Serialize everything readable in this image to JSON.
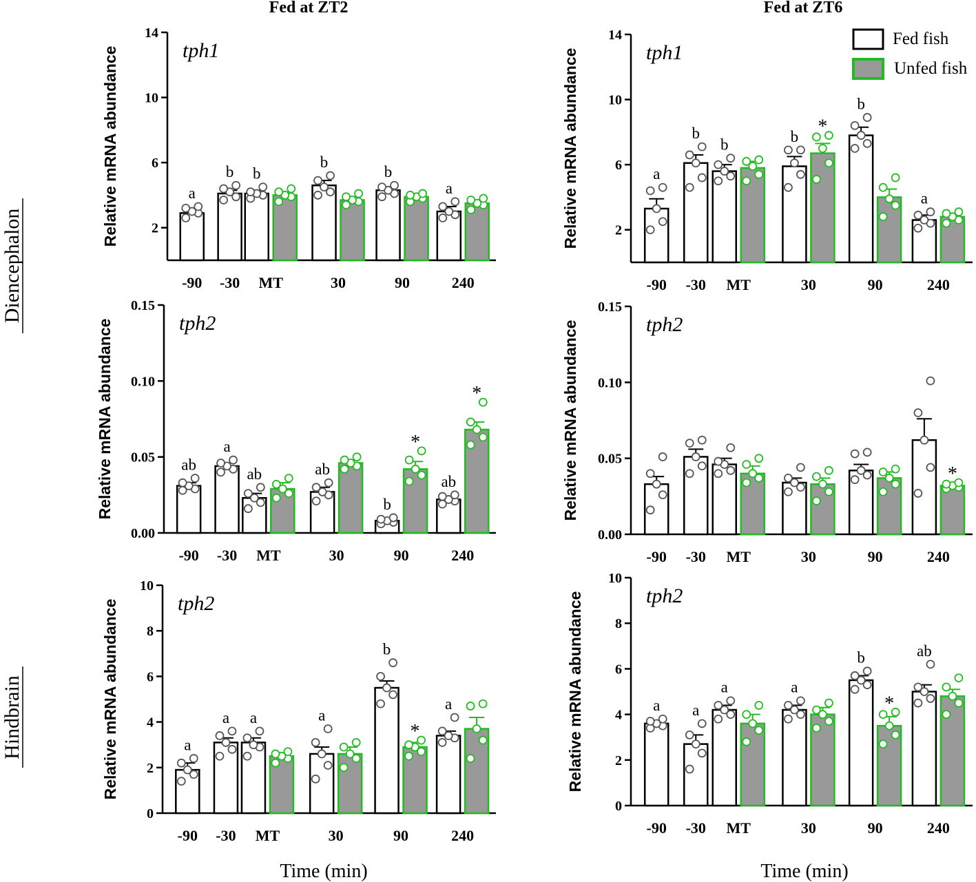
{
  "figure": {
    "col_titles": [
      "Fed at ZT2",
      "Fed at ZT6"
    ],
    "row_labels": [
      "Diencephalon",
      "Hindbrain"
    ],
    "xaxis_title": "Time (min)",
    "ylabel": "Relative mRNA abundance",
    "legend": {
      "fed": "Fed fish",
      "unfed": "Unfed fish"
    },
    "colors": {
      "fed_fill": "#ffffff",
      "fed_stroke": "#000000",
      "unfed_fill": "#999999",
      "unfed_stroke": "#22bb22",
      "fed_dot": "#555555",
      "unfed_dot": "#22bb22"
    }
  },
  "chart_data": [
    {
      "type": "bar",
      "panel": "A",
      "title": "tph1",
      "column": "Fed at ZT2",
      "region": "Diencephalon",
      "ylim": [
        0,
        14
      ],
      "yticks": [
        2,
        6,
        10,
        14
      ],
      "ytick_labels": [
        "2",
        "6",
        "10",
        "14"
      ],
      "categories": [
        "-90",
        "-30",
        "MT",
        "30",
        "90",
        "240"
      ],
      "series": [
        {
          "name": "Fed fish",
          "values": [
            2.9,
            4.1,
            4.1,
            4.6,
            4.3,
            3.0
          ],
          "sem": [
            0.2,
            0.2,
            0.2,
            0.3,
            0.2,
            0.3
          ],
          "labels": [
            "a",
            "b",
            "b",
            "b",
            "b",
            "a"
          ],
          "points": [
            [
              2.6,
              2.9,
              3.0,
              3.2,
              3.3
            ],
            [
              3.7,
              3.9,
              4.2,
              4.4,
              4.6
            ],
            [
              3.8,
              4.0,
              4.1,
              4.2,
              4.5
            ],
            [
              4.0,
              4.2,
              4.5,
              4.9,
              5.2
            ],
            [
              3.9,
              4.1,
              4.3,
              4.5,
              4.6
            ],
            [
              2.6,
              2.8,
              3.0,
              3.3,
              3.6
            ]
          ]
        },
        {
          "name": "Unfed fish",
          "values": [
            null,
            null,
            4.0,
            3.7,
            3.9,
            3.5
          ],
          "sem": [
            null,
            null,
            0.2,
            0.2,
            0.1,
            0.2
          ],
          "labels": [
            "",
            "",
            "",
            "",
            "",
            ""
          ],
          "points": [
            null,
            null,
            [
              3.6,
              3.9,
              4.0,
              4.2,
              4.4
            ],
            [
              3.4,
              3.6,
              3.7,
              3.9,
              4.1
            ],
            [
              3.6,
              3.8,
              3.9,
              4.0,
              4.1
            ],
            [
              3.1,
              3.4,
              3.5,
              3.7,
              3.8
            ]
          ]
        }
      ]
    },
    {
      "type": "bar",
      "panel": "B",
      "title": "tph1",
      "column": "Fed at ZT6",
      "region": "Diencephalon",
      "ylim": [
        0,
        14
      ],
      "yticks": [
        2,
        6,
        10,
        14
      ],
      "ytick_labels": [
        "2",
        "6",
        "10",
        "14"
      ],
      "categories": [
        "-90",
        "-30",
        "MT",
        "30",
        "90",
        "240"
      ],
      "series": [
        {
          "name": "Fed fish",
          "values": [
            3.3,
            6.1,
            5.6,
            5.9,
            7.8,
            2.6
          ],
          "sem": [
            0.6,
            0.5,
            0.4,
            0.6,
            0.5,
            0.3
          ],
          "labels": [
            "a",
            "b",
            "b",
            "b",
            "b",
            "a"
          ],
          "points": [
            [
              2.0,
              2.5,
              3.3,
              4.4,
              4.6
            ],
            [
              4.6,
              5.2,
              6.1,
              6.6,
              7.1
            ],
            [
              5.0,
              5.3,
              5.6,
              6.0,
              6.4
            ],
            [
              4.6,
              5.4,
              6.1,
              6.9,
              6.9
            ],
            [
              7.0,
              7.3,
              7.8,
              8.4,
              8.9
            ],
            [
              2.1,
              2.4,
              2.6,
              2.9,
              3.1
            ]
          ]
        },
        {
          "name": "Unfed fish",
          "values": [
            null,
            null,
            5.8,
            6.7,
            4.0,
            2.8
          ],
          "sem": [
            null,
            null,
            0.4,
            0.6,
            0.5,
            0.2
          ],
          "labels": [
            "",
            "",
            "",
            "*",
            "",
            ""
          ],
          "points": [
            null,
            null,
            [
              5.0,
              5.4,
              5.9,
              6.2,
              6.3
            ],
            [
              5.1,
              6.1,
              7.0,
              7.7,
              7.8
            ],
            [
              2.8,
              3.5,
              3.9,
              4.6,
              5.2
            ],
            [
              2.4,
              2.6,
              2.8,
              3.0,
              3.1
            ]
          ]
        }
      ]
    },
    {
      "type": "bar",
      "panel": "C",
      "title": "tph2",
      "column": "Fed at ZT2",
      "region": "Diencephalon",
      "ylim": [
        0,
        0.15
      ],
      "yticks": [
        0,
        0.05,
        0.1,
        0.15
      ],
      "ytick_labels": [
        "0.00",
        "0.05",
        "0.10",
        "0.15"
      ],
      "categories": [
        "-90",
        "-30",
        "MT",
        "30",
        "90",
        "240"
      ],
      "series": [
        {
          "name": "Fed fish",
          "values": [
            0.031,
            0.044,
            0.023,
            0.027,
            0.008,
            0.022
          ],
          "sem": [
            0.002,
            0.002,
            0.003,
            0.003,
            0.001,
            0.002
          ],
          "labels": [
            "ab",
            "a",
            "ab",
            "ab",
            "b",
            "ab"
          ],
          "points": [
            [
              0.028,
              0.029,
              0.031,
              0.033,
              0.036
            ],
            [
              0.04,
              0.042,
              0.044,
              0.046,
              0.048
            ],
            [
              0.016,
              0.02,
              0.023,
              0.026,
              0.03
            ],
            [
              0.021,
              0.025,
              0.027,
              0.03,
              0.033
            ],
            [
              0.006,
              0.007,
              0.008,
              0.009,
              0.01
            ],
            [
              0.019,
              0.021,
              0.022,
              0.024,
              0.025
            ]
          ]
        },
        {
          "name": "Unfed fish",
          "values": [
            null,
            null,
            0.029,
            0.046,
            0.042,
            0.068
          ],
          "sem": [
            null,
            null,
            0.004,
            0.002,
            0.005,
            0.005
          ],
          "labels": [
            "",
            "",
            "",
            "",
            "*",
            "*"
          ],
          "points": [
            null,
            null,
            [
              0.023,
              0.026,
              0.029,
              0.032,
              0.036
            ],
            [
              0.042,
              0.044,
              0.046,
              0.048,
              0.05
            ],
            [
              0.034,
              0.038,
              0.042,
              0.048,
              0.054
            ],
            [
              0.058,
              0.063,
              0.068,
              0.073,
              0.086
            ]
          ]
        }
      ]
    },
    {
      "type": "bar",
      "panel": "D",
      "title": "tph2",
      "column": "Fed at ZT6",
      "region": "Diencephalon",
      "ylim": [
        0,
        0.15
      ],
      "yticks": [
        0,
        0.05,
        0.1,
        0.15
      ],
      "ytick_labels": [
        "0.00",
        "0.05",
        "0.10",
        "0.15"
      ],
      "categories": [
        "-90",
        "-30",
        "MT",
        "30",
        "90",
        "240"
      ],
      "series": [
        {
          "name": "Fed fish",
          "values": [
            0.033,
            0.051,
            0.046,
            0.034,
            0.042,
            0.062
          ],
          "sem": [
            0.005,
            0.005,
            0.004,
            0.003,
            0.004,
            0.014
          ],
          "labels": [
            "",
            "",
            "",
            "",
            "",
            ""
          ],
          "points": [
            [
              0.016,
              0.026,
              0.033,
              0.04,
              0.051
            ],
            [
              0.04,
              0.045,
              0.051,
              0.06,
              0.062
            ],
            [
              0.04,
              0.042,
              0.046,
              0.048,
              0.057
            ],
            [
              0.028,
              0.031,
              0.034,
              0.037,
              0.044
            ],
            [
              0.036,
              0.039,
              0.042,
              0.053,
              0.054
            ],
            [
              0.027,
              0.044,
              0.062,
              0.08,
              0.101
            ]
          ]
        },
        {
          "name": "Unfed fish",
          "values": [
            null,
            null,
            0.04,
            0.033,
            0.037,
            0.032
          ],
          "sem": [
            null,
            null,
            0.005,
            0.004,
            0.004,
            0.001
          ],
          "labels": [
            "",
            "",
            "",
            "",
            "",
            "*"
          ],
          "points": [
            null,
            null,
            [
              0.034,
              0.037,
              0.04,
              0.046,
              0.05
            ],
            [
              0.022,
              0.028,
              0.033,
              0.038,
              0.042
            ],
            [
              0.028,
              0.033,
              0.037,
              0.041,
              0.043
            ],
            [
              0.03,
              0.031,
              0.032,
              0.033,
              0.034
            ]
          ]
        }
      ]
    },
    {
      "type": "bar",
      "panel": "E",
      "title": "tph2",
      "column": "Fed at ZT2",
      "region": "Hindbrain",
      "ylim": [
        0,
        10
      ],
      "yticks": [
        0,
        2,
        4,
        6,
        8,
        10
      ],
      "ytick_labels": [
        "0",
        "2",
        "4",
        "6",
        "8",
        "10"
      ],
      "categories": [
        "-90",
        "-30",
        "MT",
        "30",
        "90",
        "240"
      ],
      "series": [
        {
          "name": "Fed fish",
          "values": [
            1.9,
            3.1,
            3.1,
            2.6,
            5.5,
            3.4
          ],
          "sem": [
            0.3,
            0.2,
            0.2,
            0.3,
            0.3,
            0.2
          ],
          "labels": [
            "a",
            "a",
            "a",
            "a",
            "b",
            "a"
          ],
          "points": [
            [
              1.4,
              1.7,
              1.9,
              2.2,
              2.4
            ],
            [
              2.5,
              2.8,
              3.1,
              3.4,
              3.6
            ],
            [
              2.5,
              2.9,
              3.0,
              3.3,
              3.6
            ],
            [
              1.5,
              2.1,
              2.6,
              3.1,
              3.7
            ],
            [
              4.8,
              5.2,
              5.5,
              6.0,
              6.6
            ],
            [
              3.1,
              3.3,
              3.4,
              3.6,
              4.2
            ]
          ]
        },
        {
          "name": "Unfed fish",
          "values": [
            null,
            null,
            2.5,
            2.6,
            2.9,
            3.7
          ],
          "sem": [
            null,
            null,
            0.1,
            0.3,
            0.2,
            0.5
          ],
          "labels": [
            "",
            "",
            "",
            "",
            "*",
            ""
          ],
          "points": [
            null,
            null,
            [
              2.2,
              2.4,
              2.5,
              2.6,
              2.7
            ],
            [
              2.0,
              2.4,
              2.6,
              2.9,
              3.1
            ],
            [
              2.5,
              2.7,
              2.9,
              3.0,
              3.2
            ],
            [
              2.4,
              3.2,
              3.7,
              4.7,
              4.8
            ]
          ]
        }
      ]
    },
    {
      "type": "bar",
      "panel": "F",
      "title": "tph2",
      "column": "Fed at ZT6",
      "region": "Hindbrain",
      "ylim": [
        0,
        10
      ],
      "yticks": [
        0,
        2,
        4,
        6,
        8,
        10
      ],
      "ytick_labels": [
        "0",
        "2",
        "4",
        "6",
        "8",
        "10"
      ],
      "categories": [
        "-90",
        "-30",
        "MT",
        "30",
        "90",
        "240"
      ],
      "series": [
        {
          "name": "Fed fish",
          "values": [
            3.6,
            2.7,
            4.2,
            4.2,
            5.5,
            5.0
          ],
          "sem": [
            0.1,
            0.4,
            0.2,
            0.2,
            0.2,
            0.3
          ],
          "labels": [
            "a",
            "a",
            "a",
            "a",
            "b",
            "ab"
          ],
          "points": [
            [
              3.4,
              3.5,
              3.6,
              3.7,
              3.8
            ],
            [
              1.6,
              2.3,
              2.7,
              3.1,
              3.6
            ],
            [
              3.8,
              4.0,
              4.2,
              4.4,
              4.6
            ],
            [
              3.8,
              4.0,
              4.2,
              4.4,
              4.6
            ],
            [
              5.1,
              5.3,
              5.5,
              5.7,
              5.9
            ],
            [
              4.5,
              4.7,
              5.0,
              5.2,
              6.2
            ]
          ]
        },
        {
          "name": "Unfed fish",
          "values": [
            null,
            null,
            3.6,
            4.0,
            3.5,
            4.8
          ],
          "sem": [
            null,
            null,
            0.4,
            0.3,
            0.4,
            0.3
          ],
          "labels": [
            "",
            "",
            "",
            "",
            "*",
            ""
          ],
          "points": [
            null,
            null,
            [
              2.8,
              3.3,
              3.6,
              4.0,
              4.4
            ],
            [
              3.4,
              3.7,
              4.0,
              4.2,
              4.5
            ],
            [
              2.7,
              3.1,
              3.5,
              4.0,
              4.1
            ],
            [
              4.0,
              4.5,
              4.8,
              5.2,
              5.6
            ]
          ]
        }
      ]
    }
  ]
}
